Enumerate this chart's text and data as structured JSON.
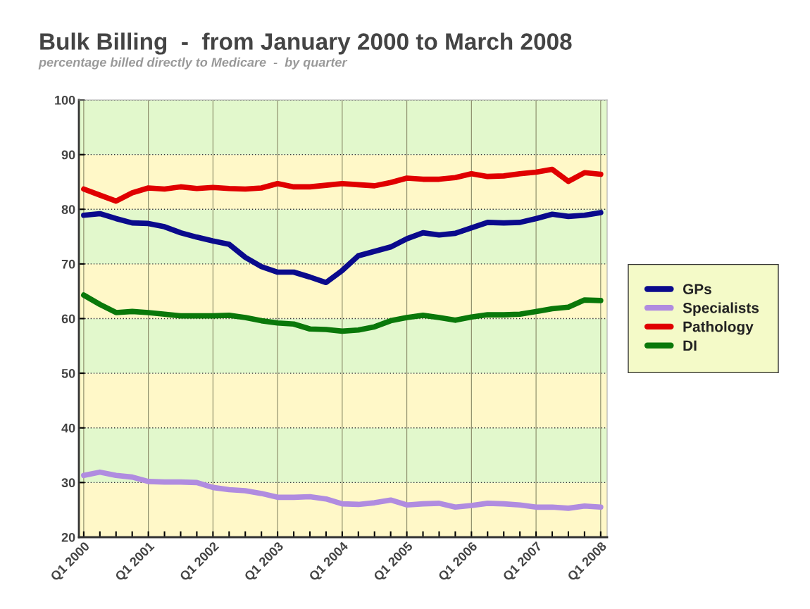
{
  "chart_data": {
    "type": "line",
    "title": "Bulk Billing  -  from January 2000 to March 2008",
    "subtitle": "percentage billed directly to Medicare  -  by quarter",
    "categories": [
      "Q1 2000",
      null,
      null,
      null,
      "Q1 2001",
      null,
      null,
      null,
      "Q1 2002",
      null,
      null,
      null,
      "Q1 2003",
      null,
      null,
      null,
      "Q1 2004",
      null,
      null,
      null,
      "Q1 2005",
      null,
      null,
      null,
      "Q1 2006",
      null,
      null,
      null,
      "Q1 2007",
      null,
      null,
      null,
      "Q1 2008"
    ],
    "series": [
      {
        "name": "GPs",
        "color": "#0a0a8c",
        "values": [
          78.9,
          79.2,
          78.3,
          77.5,
          77.4,
          76.8,
          75.7,
          74.9,
          74.2,
          73.6,
          71.2,
          69.5,
          68.5,
          68.5,
          67.6,
          66.6,
          68.8,
          71.5,
          72.3,
          73.1,
          74.6,
          75.7,
          75.3,
          75.6,
          76.6,
          77.6,
          77.5,
          77.6,
          78.3,
          79.1,
          78.7,
          78.9,
          79.4
        ]
      },
      {
        "name": "Specialists",
        "color": "#b08ce0",
        "values": [
          31.3,
          31.9,
          31.3,
          31.0,
          30.2,
          30.1,
          30.1,
          30.0,
          29.1,
          28.7,
          28.5,
          28.0,
          27.3,
          27.3,
          27.4,
          27.0,
          26.1,
          26.0,
          26.3,
          26.8,
          25.9,
          26.1,
          26.2,
          25.5,
          25.8,
          26.2,
          26.1,
          25.9,
          25.5,
          25.5,
          25.3,
          25.7,
          25.5
        ]
      },
      {
        "name": "Pathology",
        "color": "#e00000",
        "values": [
          83.7,
          82.6,
          81.5,
          83.0,
          83.9,
          83.7,
          84.1,
          83.8,
          84.0,
          83.8,
          83.7,
          83.9,
          84.7,
          84.1,
          84.1,
          84.4,
          84.7,
          84.5,
          84.3,
          84.9,
          85.7,
          85.5,
          85.5,
          85.8,
          86.5,
          86.0,
          86.1,
          86.5,
          86.8,
          87.3,
          85.1,
          86.7,
          86.4
        ]
      },
      {
        "name": "DI",
        "color": "#0a780a",
        "values": [
          64.3,
          62.6,
          61.1,
          61.3,
          61.1,
          60.8,
          60.5,
          60.5,
          60.5,
          60.6,
          60.2,
          59.6,
          59.2,
          59.0,
          58.1,
          58.0,
          57.7,
          57.9,
          58.5,
          59.6,
          60.2,
          60.6,
          60.2,
          59.7,
          60.3,
          60.7,
          60.7,
          60.8,
          61.3,
          61.8,
          62.1,
          63.4,
          63.3
        ]
      }
    ],
    "ylim": [
      20,
      100
    ],
    "yticks": [
      20,
      30,
      40,
      50,
      60,
      70,
      80,
      90,
      100
    ],
    "bands": [
      {
        "axis": "y",
        "from": 20,
        "to": 30,
        "color": "#fff8c8"
      },
      {
        "axis": "y",
        "from": 30,
        "to": 40,
        "color": "#e2f8cc"
      },
      {
        "axis": "y",
        "from": 40,
        "to": 50,
        "color": "#fff8c8"
      },
      {
        "axis": "y",
        "from": 50,
        "to": 60,
        "color": "#e2f8cc"
      },
      {
        "axis": "y",
        "from": 60,
        "to": 70,
        "color": "#fff8c8"
      },
      {
        "axis": "y",
        "from": 70,
        "to": 80,
        "color": "#e2f8cc"
      },
      {
        "axis": "y",
        "from": 80,
        "to": 90,
        "color": "#fff8c8"
      },
      {
        "axis": "y",
        "from": 90,
        "to": 100,
        "color": "#e2f8cc"
      }
    ],
    "grid": true,
    "legend": "right",
    "marker": "none",
    "line_style": "solid"
  }
}
